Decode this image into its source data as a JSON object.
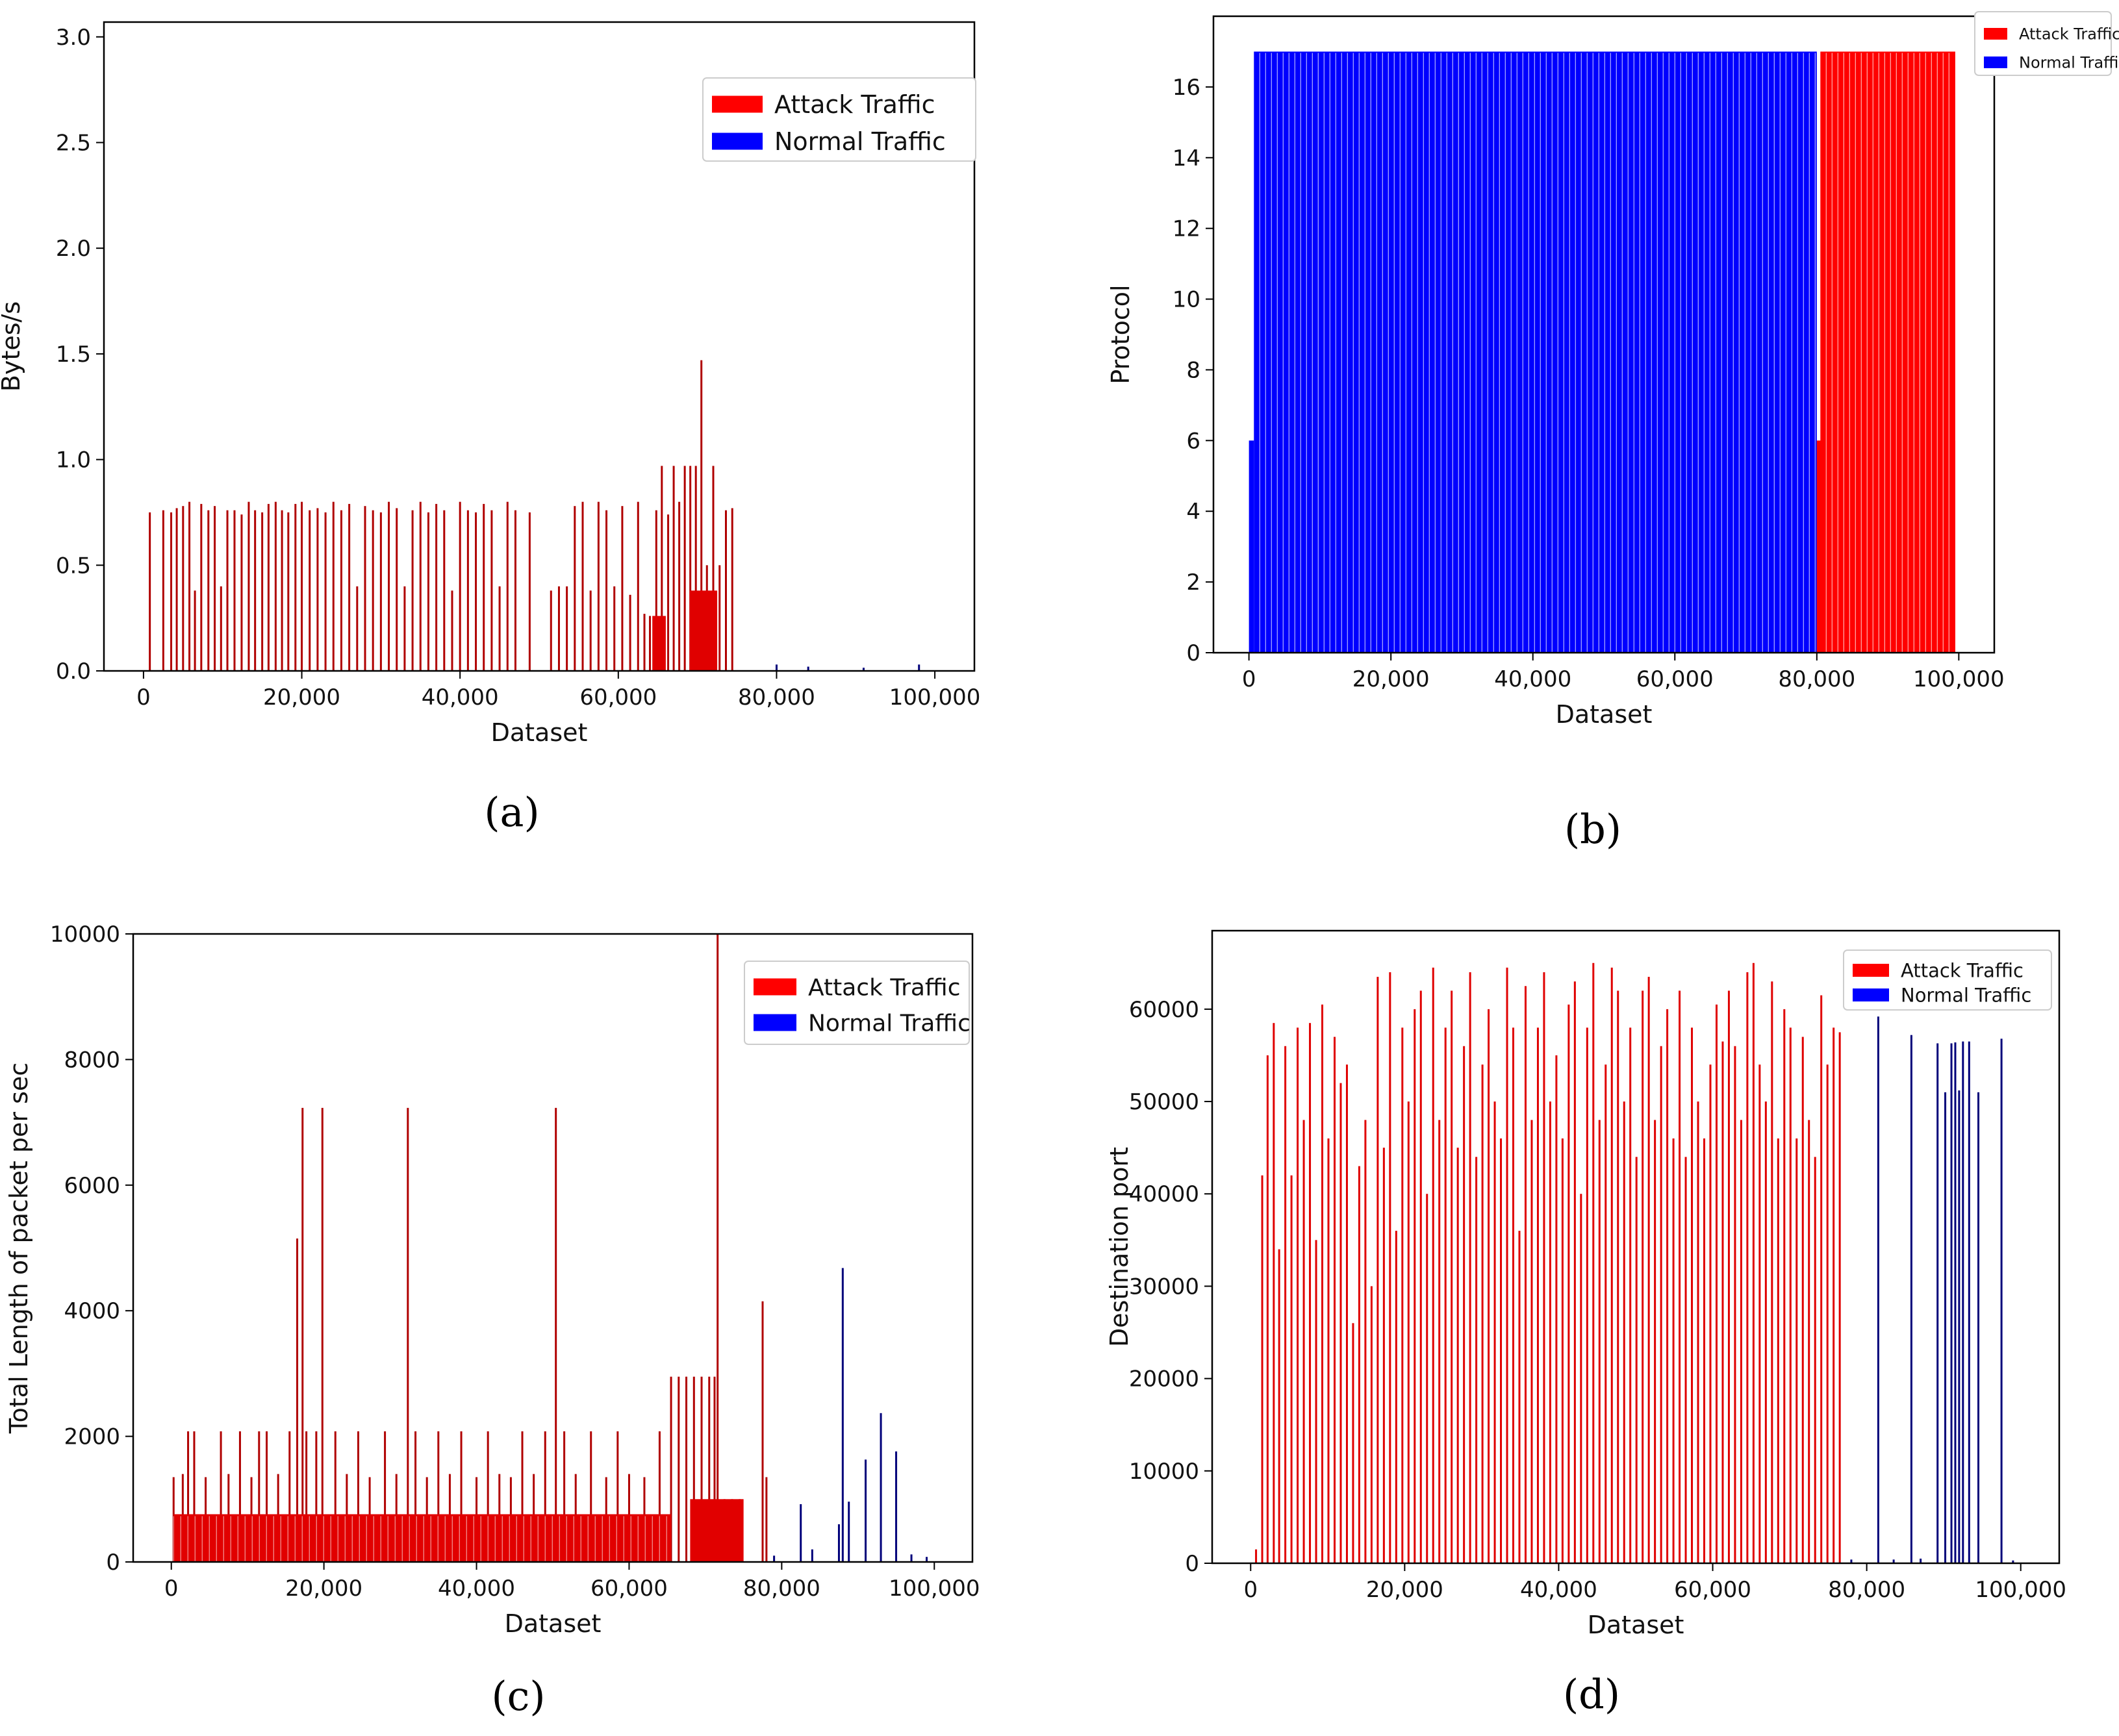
{
  "chart_data": [
    {
      "id": "a",
      "type": "bar",
      "caption": "(a)",
      "xlabel": "Dataset",
      "ylabel": "Bytes/s",
      "xlim": [
        -5000,
        105000
      ],
      "ylim": [
        0,
        3.07
      ],
      "xticks": [
        0,
        20000,
        40000,
        60000,
        80000,
        100000
      ],
      "xtick_labels": [
        "0",
        "20,000",
        "40,000",
        "60,000",
        "80,000",
        "100,000"
      ],
      "yticks": [
        0,
        0.5,
        1.0,
        1.5,
        2.0,
        2.5,
        3.0
      ],
      "ytick_labels": [
        "0.0",
        "0.5",
        "1.0",
        "1.5",
        "2.0",
        "2.5",
        "3.0"
      ],
      "legend": {
        "position": "top-right",
        "entries": [
          {
            "name": "Attack Traffic",
            "color": "#ff0000"
          },
          {
            "name": "Normal Traffic",
            "color": "#0000ff"
          }
        ]
      },
      "series": [
        {
          "name": "Attack Traffic",
          "color": "#b00000",
          "x": [
            800,
            2500,
            3500,
            4200,
            5000,
            5800,
            6500,
            7300,
            8200,
            9000,
            9800,
            10600,
            11500,
            12400,
            13300,
            14100,
            15000,
            15800,
            16700,
            17500,
            18300,
            19200,
            20000,
            21000,
            22000,
            23000,
            24000,
            25000,
            26000,
            27000,
            28000,
            29000,
            30000,
            31000,
            32000,
            33000,
            34000,
            35000,
            36000,
            37000,
            38000,
            39000,
            40000,
            41000,
            42000,
            43000,
            44000,
            45000,
            46000,
            47000,
            48800,
            51500,
            52500,
            53500,
            54500,
            55500,
            56500,
            57500,
            58500,
            59500,
            60500,
            61500,
            62500,
            63300,
            64000,
            64800,
            65500,
            66300,
            67000,
            67700,
            68400,
            69100,
            69800,
            70500,
            71200,
            72000,
            72800,
            73600,
            74400
          ],
          "values": [
            0.75,
            0.76,
            0.75,
            0.77,
            0.78,
            0.8,
            0.38,
            0.79,
            0.76,
            0.78,
            0.4,
            0.76,
            0.76,
            0.74,
            0.8,
            0.76,
            0.75,
            0.79,
            0.8,
            0.76,
            0.75,
            0.79,
            0.8,
            0.76,
            0.77,
            0.75,
            0.8,
            0.76,
            0.79,
            0.4,
            0.78,
            0.76,
            0.75,
            0.8,
            0.77,
            0.4,
            0.76,
            0.8,
            0.75,
            0.79,
            0.76,
            0.38,
            0.8,
            0.76,
            0.75,
            0.79,
            0.76,
            0.4,
            0.8,
            0.76,
            0.75,
            0.38,
            0.4,
            0.4,
            0.78,
            0.8,
            0.38,
            0.8,
            0.76,
            0.4,
            0.78,
            0.36,
            0.8,
            0.27,
            0.26,
            0.76,
            0.97,
            0.74,
            0.97,
            0.8,
            0.97,
            0.97,
            0.97,
            1.47,
            0.5,
            0.97,
            0.5,
            0.76,
            0.77
          ]
        },
        {
          "name": "Normal Traffic",
          "color": "#00007a",
          "x": [
            80000,
            84000,
            91000,
            98000
          ],
          "values": [
            0.03,
            0.02,
            0.015,
            0.03
          ]
        }
      ]
    },
    {
      "id": "b",
      "type": "bar",
      "caption": "(b)",
      "xlabel": "Dataset",
      "ylabel": "Protocol",
      "xlim": [
        -5000,
        105000
      ],
      "ylim": [
        0,
        18
      ],
      "xticks": [
        0,
        20000,
        40000,
        60000,
        80000,
        100000
      ],
      "xtick_labels": [
        "0",
        "20,000",
        "40,000",
        "60,000",
        "80,000",
        "100,000"
      ],
      "yticks": [
        0,
        2,
        4,
        6,
        8,
        10,
        12,
        14,
        16
      ],
      "ytick_labels": [
        "0",
        "2",
        "4",
        "6",
        "8",
        "10",
        "12",
        "14",
        "16"
      ],
      "legend": {
        "position": "top-right",
        "entries": [
          {
            "name": "Attack Traffic",
            "color": "#ff0000"
          },
          {
            "name": "Normal Traffic",
            "color": "#0000ff"
          }
        ]
      },
      "series": [
        {
          "name": "Normal Traffic",
          "color": "#0000ff",
          "x": [
            [
              0,
              700
            ],
            [
              700,
              80000
            ]
          ],
          "values": [
            6,
            17
          ]
        },
        {
          "name": "Attack Traffic",
          "color": "#ff0000",
          "x": [
            [
              80000,
              99500
            ],
            [
              80500,
              99500
            ]
          ],
          "values": [
            6,
            17
          ]
        }
      ]
    },
    {
      "id": "c",
      "type": "bar",
      "caption": "(c)",
      "xlabel": "Dataset",
      "ylabel": "Total Length of packet per sec",
      "xlim": [
        -5000,
        105000
      ],
      "ylim": [
        0,
        10000
      ],
      "xticks": [
        0,
        20000,
        40000,
        60000,
        80000,
        100000
      ],
      "xtick_labels": [
        "0",
        "20,000",
        "40,000",
        "60,000",
        "80,000",
        "100,000"
      ],
      "yticks": [
        0,
        2000,
        4000,
        6000,
        8000,
        10000
      ],
      "ytick_labels": [
        "0",
        "2000",
        "4000",
        "6000",
        "8000",
        "10000"
      ],
      "legend": {
        "position": "top-right",
        "entries": [
          {
            "name": "Attack Traffic",
            "color": "#ff0000"
          },
          {
            "name": "Normal Traffic",
            "color": "#0000ff"
          }
        ]
      },
      "series": [
        {
          "name": "Attack Traffic",
          "color": "#b00000",
          "x": [
            300,
            1500,
            2200,
            3000,
            4500,
            6500,
            7500,
            9000,
            10500,
            11500,
            12500,
            14000,
            15500,
            16500,
            17200,
            17700,
            19000,
            19800,
            21500,
            23000,
            24500,
            26000,
            28000,
            29500,
            31000,
            32000,
            33500,
            35000,
            36500,
            38000,
            40000,
            41500,
            43000,
            44500,
            46000,
            47500,
            49000,
            50400,
            51500,
            53000,
            55000,
            57000,
            58500,
            60000,
            62000,
            64000,
            65500,
            66500,
            67500,
            68500,
            69500,
            70500,
            71200,
            71600,
            72500,
            73500,
            74500,
            77500,
            78000
          ],
          "values": [
            1350,
            1400,
            2080,
            2080,
            1350,
            2080,
            1400,
            2080,
            1350,
            2080,
            2080,
            1400,
            2080,
            5150,
            7230,
            2080,
            2080,
            7230,
            2080,
            1400,
            2080,
            1350,
            2080,
            1400,
            7230,
            2080,
            1350,
            2080,
            1400,
            2080,
            1350,
            2080,
            1400,
            1350,
            2080,
            1400,
            2080,
            7230,
            2080,
            1400,
            2080,
            1350,
            2080,
            1400,
            1350,
            2080,
            2950,
            2950,
            2950,
            2950,
            2950,
            2950,
            2950,
            10000,
            1000,
            1000,
            1000,
            4150,
            1350
          ]
        },
        {
          "name": "Normal Traffic",
          "color": "#00007a",
          "x": [
            79000,
            82500,
            84000,
            87500,
            88000,
            88800,
            91000,
            93000,
            95000,
            97000,
            99000
          ],
          "values": [
            100,
            920,
            200,
            600,
            4680,
            960,
            1630,
            2370,
            1760,
            120,
            80
          ]
        }
      ]
    },
    {
      "id": "d",
      "type": "bar",
      "caption": "(d)",
      "xlabel": "Dataset",
      "ylabel": "Destination port",
      "xlim": [
        -5000,
        105000
      ],
      "ylim": [
        0,
        68500
      ],
      "xticks": [
        0,
        20000,
        40000,
        60000,
        80000,
        100000
      ],
      "xtick_labels": [
        "0",
        "20,000",
        "40,000",
        "60,000",
        "80,000",
        "100,000"
      ],
      "yticks": [
        0,
        10000,
        20000,
        30000,
        40000,
        50000,
        60000
      ],
      "ytick_labels": [
        "0",
        "10000",
        "20000",
        "30000",
        "40000",
        "50000",
        "60000"
      ],
      "legend": {
        "position": "top-right",
        "entries": [
          {
            "name": "Attack Traffic",
            "color": "#ff0000"
          },
          {
            "name": "Normal Traffic",
            "color": "#0000ff"
          }
        ]
      },
      "series": [
        {
          "name": "Attack Traffic",
          "color": "#e00000",
          "x": [
            700,
            1500,
            2200,
            3000,
            3700,
            4500,
            5300,
            6100,
            6900,
            7700,
            8500,
            9300,
            10100,
            10900,
            11700,
            12500,
            13300,
            14100,
            14900,
            15700,
            16500,
            17300,
            18100,
            18900,
            19700,
            20500,
            21300,
            22100,
            22900,
            23700,
            24500,
            25300,
            26100,
            26900,
            27700,
            28500,
            29300,
            30100,
            30900,
            31700,
            32500,
            33300,
            34100,
            34900,
            35700,
            36500,
            37300,
            38100,
            38900,
            39700,
            40500,
            41300,
            42100,
            42900,
            43700,
            44500,
            45300,
            46100,
            46900,
            47700,
            48500,
            49300,
            50100,
            50900,
            51700,
            52500,
            53300,
            54100,
            54900,
            55700,
            56500,
            57300,
            58100,
            58900,
            59700,
            60500,
            61300,
            62100,
            62900,
            63700,
            64500,
            65300,
            66100,
            66900,
            67700,
            68500,
            69300,
            70100,
            70900,
            71700,
            72500,
            73300,
            74100,
            74900,
            75700,
            76500
          ],
          "values": [
            1500,
            42000,
            55000,
            58500,
            34000,
            56000,
            42000,
            58000,
            48000,
            58500,
            35000,
            60500,
            46000,
            57000,
            52000,
            54000,
            26000,
            43000,
            48000,
            30000,
            63500,
            45000,
            64000,
            36000,
            58000,
            50000,
            60000,
            62000,
            40000,
            64500,
            48000,
            58000,
            62000,
            45000,
            56000,
            64000,
            44000,
            54000,
            60000,
            50000,
            46000,
            64500,
            58000,
            36000,
            62500,
            48000,
            58000,
            64000,
            50000,
            55000,
            46000,
            60500,
            63000,
            40000,
            58000,
            65000,
            48000,
            54000,
            64500,
            62000,
            50000,
            58000,
            44000,
            62000,
            63500,
            48000,
            56000,
            60000,
            46000,
            62000,
            44000,
            58000,
            50000,
            46000,
            54000,
            60500,
            56500,
            62000,
            56000,
            48000,
            64000,
            65000,
            54000,
            50000,
            63000,
            46000,
            60000,
            58000,
            46000,
            57000,
            48000,
            44000,
            61500,
            54000,
            58000,
            57500
          ]
        },
        {
          "name": "Normal Traffic",
          "color": "#00007a",
          "x": [
            78000,
            81500,
            83500,
            85800,
            87000,
            89200,
            90200,
            91000,
            91500,
            92000,
            92500,
            93300,
            94500,
            97500,
            99000
          ],
          "values": [
            400,
            59200,
            400,
            57200,
            500,
            56300,
            51000,
            56300,
            56400,
            51200,
            56500,
            56500,
            51000,
            56800,
            300
          ]
        }
      ]
    }
  ]
}
